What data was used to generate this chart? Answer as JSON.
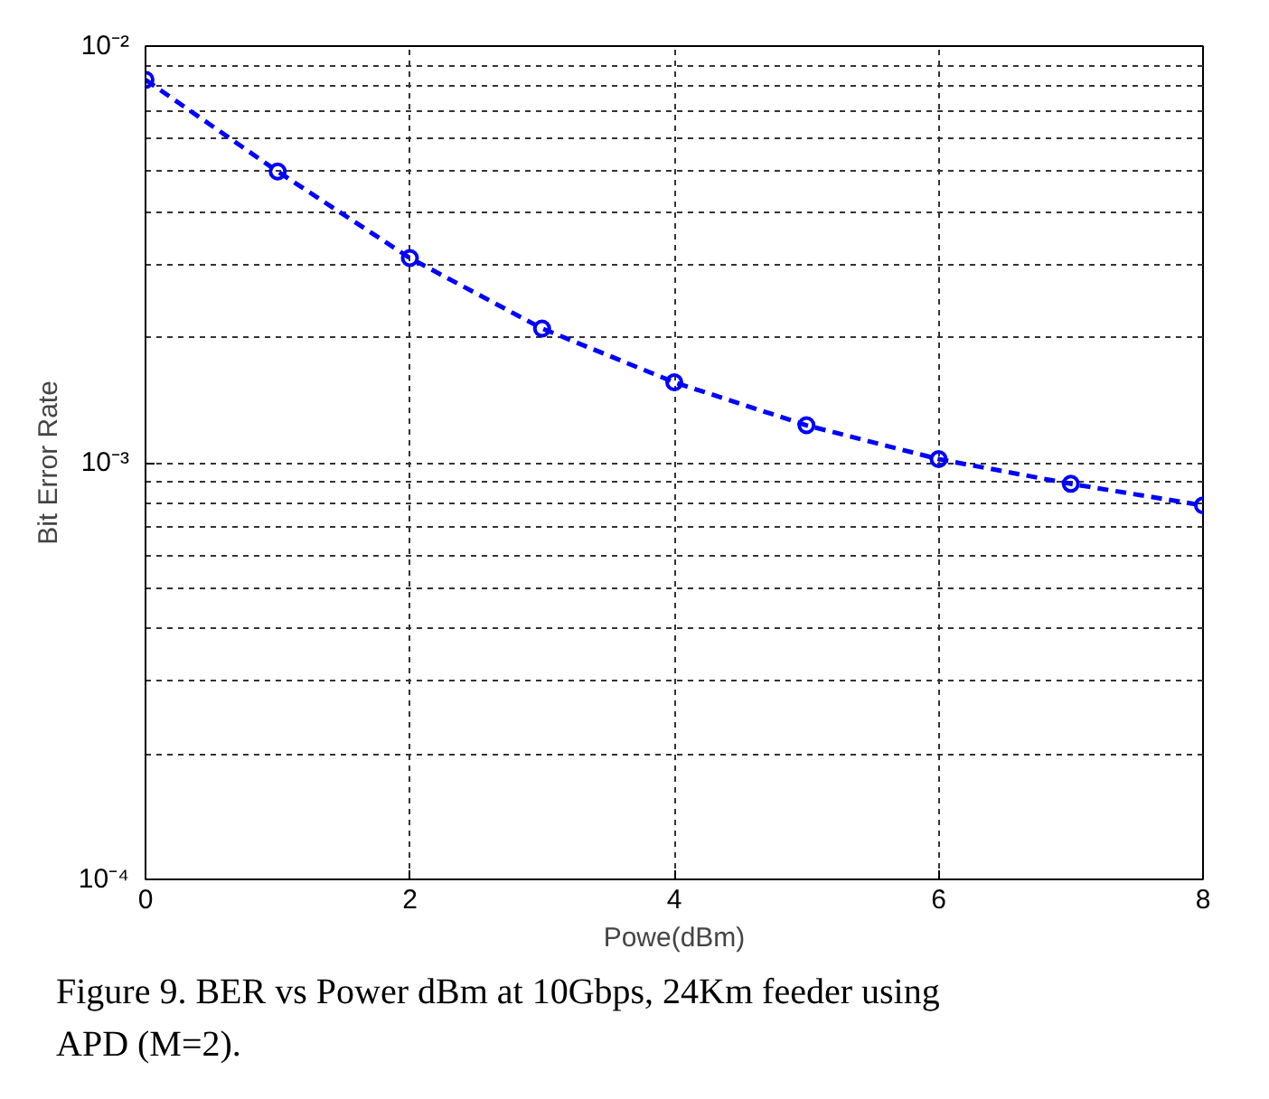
{
  "chart_data": {
    "type": "line",
    "xlabel": "Powe(dBm)",
    "ylabel": "Bit Error Rate",
    "annotations": [
      "Figure 9. BER vs Power dBm at 10Gbps, 24Km feeder using APD (M=2)."
    ],
    "x": [
      0,
      1,
      2,
      3,
      4,
      5,
      6,
      7,
      8
    ],
    "series": [
      {
        "color": "#0000ff",
        "values": [
          0.0083,
          0.005,
          0.0031,
          0.0021,
          0.00156,
          0.00123,
          0.00102,
          0.00089,
          0.00079
        ]
      }
    ],
    "xlim": [
      0,
      8
    ],
    "ylim": [
      0.0001,
      0.01
    ],
    "xticks": [
      0,
      2,
      4,
      6,
      8
    ],
    "yticks": [
      {
        "value": 0.0001,
        "label": "10⁻⁴"
      },
      {
        "value": 0.001,
        "label": "10⁻³"
      },
      {
        "value": 0.01,
        "label": "10⁻²"
      }
    ],
    "log": "y",
    "grid": true,
    "marker": "circle",
    "line_style": "dashed"
  }
}
